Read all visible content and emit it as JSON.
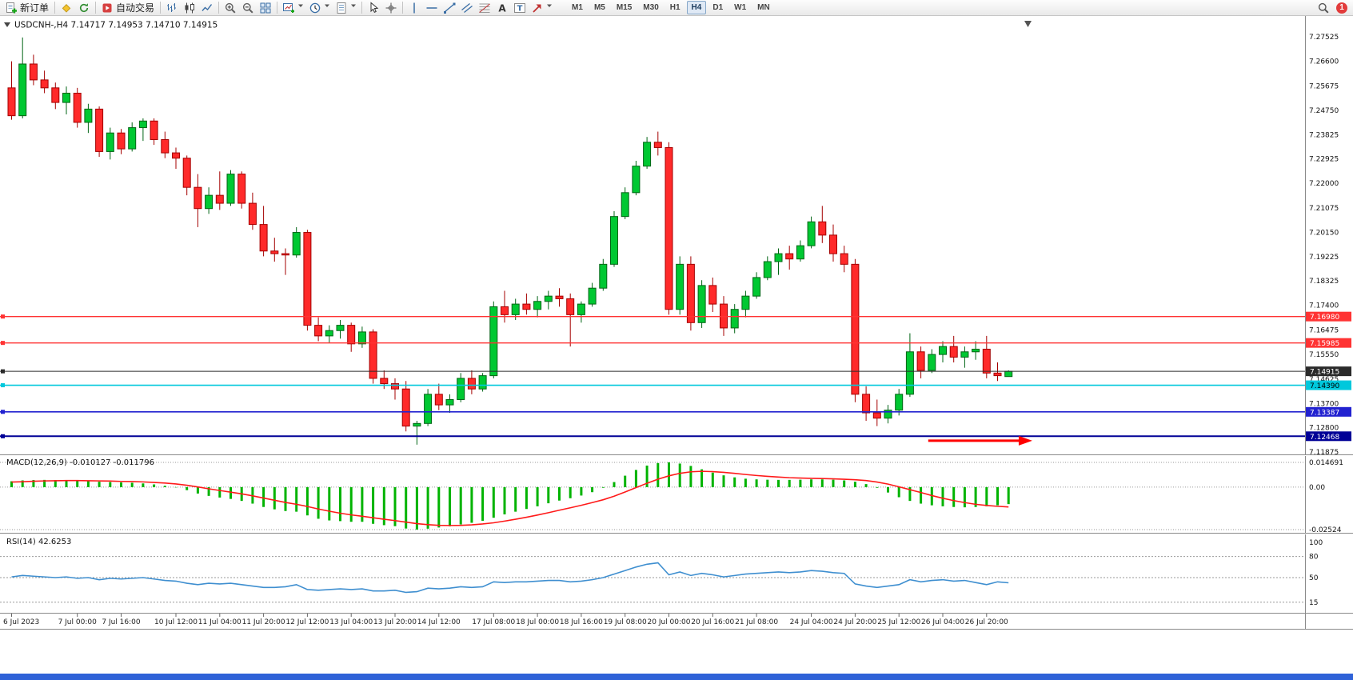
{
  "window": {
    "title": "USDCNH-,H4 7.14717 7.14953 7.14710 7.14915",
    "symbol_period": "USDCNH-,H4",
    "ohlc_text": "7.14717 7.14953 7.14710 7.14915"
  },
  "toolbar": {
    "groups": [
      {
        "items": [
          {
            "name": "new-order-button",
            "icon": "new-order",
            "label": "新订单"
          }
        ]
      },
      {
        "items": [
          {
            "name": "metaquotes-button",
            "icon": "mql"
          },
          {
            "name": "refresh-button",
            "icon": "refresh"
          }
        ]
      },
      {
        "items": [
          {
            "name": "autotrading-button",
            "icon": "autotrade",
            "label": "自动交易"
          }
        ]
      },
      {
        "items": [
          {
            "name": "bar-chart-button",
            "icon": "bars"
          },
          {
            "name": "candlestick-chart-button",
            "icon": "candles"
          },
          {
            "name": "line-chart-button",
            "icon": "linechart"
          }
        ]
      },
      {
        "items": [
          {
            "name": "zoom-in-button",
            "icon": "zoom-in"
          },
          {
            "name": "zoom-out-button",
            "icon": "zoom-out"
          },
          {
            "name": "tile-windows-button",
            "icon": "tile"
          }
        ]
      },
      {
        "items": [
          {
            "name": "new-chart-button",
            "icon": "new-chart",
            "caret": true
          },
          {
            "name": "profiles-button",
            "icon": "clock",
            "caret": true
          },
          {
            "name": "templates-button",
            "icon": "template",
            "caret": true
          }
        ]
      },
      {
        "items": [
          {
            "name": "cursor-button",
            "icon": "cursor"
          },
          {
            "name": "crosshair-button",
            "icon": "crosshair"
          }
        ]
      },
      {
        "items": [
          {
            "name": "vertical-line-button",
            "icon": "vline"
          },
          {
            "name": "horizontal-line-button",
            "icon": "hline"
          },
          {
            "name": "trendline-button",
            "icon": "trendline"
          },
          {
            "name": "channel-button",
            "icon": "channel"
          },
          {
            "name": "fibonacci-button",
            "icon": "fibo"
          },
          {
            "name": "text-button",
            "icon": "text-a"
          },
          {
            "name": "text-label-button",
            "icon": "text-t"
          },
          {
            "name": "arrows-button",
            "icon": "arrow",
            "caret": true
          }
        ]
      }
    ],
    "timeframes": [
      "M1",
      "M5",
      "M15",
      "M30",
      "H1",
      "H4",
      "D1",
      "W1",
      "MN"
    ],
    "active_timeframe": "H4",
    "notification_count": "1"
  },
  "chart_data": {
    "type": "candlestick",
    "symbol": "USDCNH-",
    "timeframe": "H4",
    "title": "USDCNH-,H4 7.14717 7.14953 7.14710 7.14915",
    "last_ohlc": {
      "open": 7.14717,
      "high": 7.14953,
      "low": 7.1471,
      "close": 7.14915
    },
    "colors": {
      "bull": "#00c832",
      "bull_border": "#006414",
      "bear": "#ff2a2a",
      "bear_border": "#a40000",
      "background": "#ffffff"
    },
    "y_axis_labels": [
      "7.27525",
      "7.26600",
      "7.25675",
      "7.24750",
      "7.23825",
      "7.22925",
      "7.22000",
      "7.21075",
      "7.20150",
      "7.19225",
      "7.18325",
      "7.17400",
      "7.16475",
      "7.15550",
      "7.14625",
      "7.13700",
      "7.12800",
      "7.11875"
    ],
    "x_axis_labels": [
      {
        "i": 0,
        "t": "6 Jul 2023"
      },
      {
        "i": 6,
        "t": "7 Jul 00:00"
      },
      {
        "i": 10,
        "t": "7 Jul 16:00"
      },
      {
        "i": 15,
        "t": "10 Jul 12:00"
      },
      {
        "i": 19,
        "t": "11 Jul 04:00"
      },
      {
        "i": 23,
        "t": "11 Jul 20:00"
      },
      {
        "i": 27,
        "t": "12 Jul 12:00"
      },
      {
        "i": 31,
        "t": "13 Jul 04:00"
      },
      {
        "i": 35,
        "t": "13 Jul 20:00"
      },
      {
        "i": 39,
        "t": "14 Jul 12:00"
      },
      {
        "i": 44,
        "t": "17 Jul 08:00"
      },
      {
        "i": 48,
        "t": "18 Jul 00:00"
      },
      {
        "i": 52,
        "t": "18 Jul 16:00"
      },
      {
        "i": 56,
        "t": "19 Jul 08:00"
      },
      {
        "i": 60,
        "t": "20 Jul 00:00"
      },
      {
        "i": 64,
        "t": "20 Jul 16:00"
      },
      {
        "i": 68,
        "t": "21 Jul 08:00"
      },
      {
        "i": 73,
        "t": "24 Jul 04:00"
      },
      {
        "i": 77,
        "t": "24 Jul 20:00"
      },
      {
        "i": 81,
        "t": "25 Jul 12:00"
      },
      {
        "i": 85,
        "t": "26 Jul 04:00"
      },
      {
        "i": 89,
        "t": "26 Jul 20:00"
      }
    ],
    "candles": [
      [
        7.256,
        7.266,
        7.244,
        7.2455
      ],
      [
        7.2455,
        7.275,
        7.2445,
        7.265
      ],
      [
        7.265,
        7.2685,
        7.257,
        7.259
      ],
      [
        7.259,
        7.2625,
        7.254,
        7.256
      ],
      [
        7.256,
        7.258,
        7.248,
        7.2505
      ],
      [
        7.2505,
        7.2565,
        7.246,
        7.254
      ],
      [
        7.254,
        7.256,
        7.241,
        7.243
      ],
      [
        7.243,
        7.25,
        7.239,
        7.248
      ],
      [
        7.248,
        7.249,
        7.23,
        7.232
      ],
      [
        7.232,
        7.241,
        7.229,
        7.239
      ],
      [
        7.239,
        7.2405,
        7.231,
        7.233
      ],
      [
        7.233,
        7.243,
        7.232,
        7.241
      ],
      [
        7.241,
        7.2445,
        7.236,
        7.2435
      ],
      [
        7.2435,
        7.2445,
        7.2345,
        7.2365
      ],
      [
        7.2365,
        7.2395,
        7.2295,
        7.2315
      ],
      [
        7.2315,
        7.2335,
        7.2255,
        7.2295
      ],
      [
        7.2295,
        7.2305,
        7.2155,
        7.2185
      ],
      [
        7.2185,
        7.2235,
        7.2035,
        7.2105
      ],
      [
        7.2105,
        7.2185,
        7.2085,
        7.2155
      ],
      [
        7.2155,
        7.2245,
        7.21,
        7.2125
      ],
      [
        7.2125,
        7.225,
        7.2115,
        7.2235
      ],
      [
        7.2235,
        7.2245,
        7.2105,
        7.2125
      ],
      [
        7.2125,
        7.2165,
        7.2025,
        7.2045
      ],
      [
        7.2045,
        7.2115,
        7.1925,
        7.1945
      ],
      [
        7.1945,
        7.1995,
        7.1905,
        7.1935
      ],
      [
        7.1935,
        7.1955,
        7.1855,
        7.193
      ],
      [
        7.193,
        7.2035,
        7.192,
        7.2015
      ],
      [
        7.2015,
        7.2025,
        7.1645,
        7.1665
      ],
      [
        7.1665,
        7.1695,
        7.1605,
        7.1625
      ],
      [
        7.1625,
        7.1665,
        7.16,
        7.1645
      ],
      [
        7.1645,
        7.1685,
        7.1615,
        7.1665
      ],
      [
        7.1665,
        7.1675,
        7.1565,
        7.1595
      ],
      [
        7.1595,
        7.166,
        7.158,
        7.164
      ],
      [
        7.164,
        7.165,
        7.1445,
        7.1465
      ],
      [
        7.1465,
        7.1495,
        7.1425,
        7.1445
      ],
      [
        7.1445,
        7.1465,
        7.1385,
        7.1425
      ],
      [
        7.1425,
        7.1455,
        7.1265,
        7.1285
      ],
      [
        7.1285,
        7.1305,
        7.1215,
        7.1295
      ],
      [
        7.1295,
        7.1425,
        7.1285,
        7.1405
      ],
      [
        7.1405,
        7.1445,
        7.1345,
        7.1365
      ],
      [
        7.1365,
        7.1405,
        7.1335,
        7.1385
      ],
      [
        7.1385,
        7.1485,
        7.1375,
        7.1465
      ],
      [
        7.1465,
        7.1495,
        7.1405,
        7.1425
      ],
      [
        7.1425,
        7.1485,
        7.1415,
        7.1475
      ],
      [
        7.1475,
        7.1755,
        7.1465,
        7.1735
      ],
      [
        7.1735,
        7.1795,
        7.1675,
        7.1705
      ],
      [
        7.1705,
        7.1765,
        7.1685,
        7.1745
      ],
      [
        7.1745,
        7.1785,
        7.1705,
        7.1725
      ],
      [
        7.1725,
        7.1775,
        7.1695,
        7.1755
      ],
      [
        7.1755,
        7.1795,
        7.1725,
        7.1775
      ],
      [
        7.1775,
        7.1805,
        7.1735,
        7.1765
      ],
      [
        7.1765,
        7.1785,
        7.1585,
        7.1705
      ],
      [
        7.1705,
        7.1755,
        7.1675,
        7.1745
      ],
      [
        7.1745,
        7.1825,
        7.1735,
        7.1805
      ],
      [
        7.1805,
        7.1915,
        7.1795,
        7.1895
      ],
      [
        7.1895,
        7.2095,
        7.1885,
        7.2075
      ],
      [
        7.2075,
        7.2185,
        7.2065,
        7.2165
      ],
      [
        7.2165,
        7.2285,
        7.2155,
        7.2265
      ],
      [
        7.2265,
        7.2375,
        7.2255,
        7.2355
      ],
      [
        7.2355,
        7.2395,
        7.2305,
        7.2335
      ],
      [
        7.2335,
        7.2355,
        7.1705,
        7.1725
      ],
      [
        7.1725,
        7.1925,
        7.1705,
        7.1895
      ],
      [
        7.1895,
        7.1925,
        7.1645,
        7.1675
      ],
      [
        7.1675,
        7.1835,
        7.1655,
        7.1815
      ],
      [
        7.1815,
        7.1845,
        7.1715,
        7.1745
      ],
      [
        7.1745,
        7.1775,
        7.1625,
        7.1655
      ],
      [
        7.1655,
        7.1745,
        7.1635,
        7.1725
      ],
      [
        7.1725,
        7.1795,
        7.1695,
        7.1775
      ],
      [
        7.1775,
        7.1865,
        7.1765,
        7.1845
      ],
      [
        7.1845,
        7.1925,
        7.1835,
        7.1905
      ],
      [
        7.1905,
        7.1955,
        7.1855,
        7.1935
      ],
      [
        7.1935,
        7.1965,
        7.1875,
        7.1915
      ],
      [
        7.1915,
        7.1985,
        7.1905,
        7.1965
      ],
      [
        7.1965,
        7.2075,
        7.1955,
        7.2055
      ],
      [
        7.2055,
        7.2115,
        7.1975,
        7.2005
      ],
      [
        7.2005,
        7.2045,
        7.1905,
        7.1935
      ],
      [
        7.1935,
        7.1965,
        7.1865,
        7.1895
      ],
      [
        7.1895,
        7.1915,
        7.1375,
        7.1405
      ],
      [
        7.1405,
        7.1435,
        7.1305,
        7.1335
      ],
      [
        7.1335,
        7.1385,
        7.1285,
        7.1315
      ],
      [
        7.1315,
        7.1365,
        7.1295,
        7.1345
      ],
      [
        7.1345,
        7.1425,
        7.1325,
        7.1405
      ],
      [
        7.1405,
        7.1635,
        7.1395,
        7.1565
      ],
      [
        7.1565,
        7.1585,
        7.1465,
        7.1495
      ],
      [
        7.1495,
        7.1575,
        7.1485,
        7.1555
      ],
      [
        7.1555,
        7.1605,
        7.1525,
        7.1585
      ],
      [
        7.1585,
        7.1625,
        7.1525,
        7.1545
      ],
      [
        7.1545,
        7.1585,
        7.1505,
        7.1565
      ],
      [
        7.1565,
        7.1605,
        7.1535,
        7.1575
      ],
      [
        7.1575,
        7.1625,
        7.1465,
        7.1485
      ],
      [
        7.1485,
        7.1525,
        7.1455,
        7.1475
      ],
      [
        7.14717,
        7.14953,
        7.1471,
        7.14915
      ]
    ],
    "horizontal_lines": [
      {
        "name": "resistance-line-1",
        "price": "7.16980",
        "color": "#ff3333",
        "width": 1.3,
        "tag_text": "#ffffff"
      },
      {
        "name": "resistance-line-2",
        "price": "7.15985",
        "color": "#ff3333",
        "width": 1.3,
        "tag_text": "#ffffff"
      },
      {
        "name": "current-price-line",
        "price": "7.14915",
        "color": "#2a2a2a",
        "width": 1,
        "tag_text": "#ffffff"
      },
      {
        "name": "support-line-1",
        "price": "7.14390",
        "color": "#00c8dc",
        "width": 1.6,
        "tag_text": "#000000"
      },
      {
        "name": "support-line-2",
        "price": "7.13387",
        "color": "#2222d0",
        "width": 1.6,
        "tag_text": "#ffffff"
      },
      {
        "name": "support-line-3",
        "price": "7.12468",
        "color": "#000096",
        "width": 2,
        "tag_text": "#ffffff"
      }
    ],
    "annotations": [
      {
        "type": "arrow-right",
        "from_i": 84,
        "to_i": 93.5,
        "price": 7.123,
        "color": "#ff0000"
      }
    ],
    "indicators": [
      {
        "name": "MACD",
        "label": "MACD(12,26,9) -0.010127 -0.011796",
        "main_value": "-0.010127",
        "signal_value": "-0.011796",
        "axis": [
          {
            "t": "0.014691",
            "v": 0.014691
          },
          {
            "t": "0.00",
            "v": 0
          },
          {
            "t": "-0.02524",
            "v": -0.025241
          }
        ],
        "colors": {
          "histogram": "#00b300",
          "signal": "#ff1a1a"
        },
        "histogram": [
          0.0035,
          0.004,
          0.0042,
          0.0043,
          0.0042,
          0.004,
          0.0038,
          0.0036,
          0.0032,
          0.003,
          0.0028,
          0.0026,
          0.0022,
          0.0016,
          0.0008,
          -0.0002,
          -0.0018,
          -0.0038,
          -0.0052,
          -0.0062,
          -0.007,
          -0.0082,
          -0.0098,
          -0.0118,
          -0.0132,
          -0.0142,
          -0.0146,
          -0.0168,
          -0.0188,
          -0.0198,
          -0.0202,
          -0.0206,
          -0.0206,
          -0.0218,
          -0.0226,
          -0.0232,
          -0.0246,
          -0.0252,
          -0.0247,
          -0.024,
          -0.0233,
          -0.0222,
          -0.0212,
          -0.02,
          -0.0182,
          -0.0162,
          -0.0146,
          -0.013,
          -0.0114,
          -0.0096,
          -0.008,
          -0.0066,
          -0.005,
          -0.003,
          -0.0004,
          0.003,
          0.0068,
          0.0102,
          0.0128,
          0.0143,
          0.0147,
          0.014,
          0.0126,
          0.0106,
          0.0086,
          0.007,
          0.0058,
          0.005,
          0.0046,
          0.0044,
          0.0043,
          0.0043,
          0.0044,
          0.0046,
          0.0046,
          0.0044,
          0.004,
          0.0032,
          0.0018,
          -0.0004,
          -0.0032,
          -0.006,
          -0.0082,
          -0.0098,
          -0.0108,
          -0.0114,
          -0.0118,
          -0.012,
          -0.0118,
          -0.0114,
          -0.0108,
          -0.0101
        ],
        "signal": [
          0.003,
          0.0032,
          0.0035,
          0.0037,
          0.0038,
          0.0039,
          0.0039,
          0.0038,
          0.0037,
          0.0036,
          0.0034,
          0.0033,
          0.0031,
          0.0028,
          0.0024,
          0.0019,
          0.0011,
          0.0001,
          -0.001,
          -0.002,
          -0.003,
          -0.004,
          -0.0052,
          -0.0065,
          -0.0078,
          -0.0091,
          -0.0102,
          -0.0115,
          -0.013,
          -0.0143,
          -0.0155,
          -0.0165,
          -0.0173,
          -0.0182,
          -0.0191,
          -0.0199,
          -0.0208,
          -0.0217,
          -0.0223,
          -0.0227,
          -0.0228,
          -0.0227,
          -0.0224,
          -0.0219,
          -0.0212,
          -0.0202,
          -0.0191,
          -0.0179,
          -0.0166,
          -0.0152,
          -0.0137,
          -0.0123,
          -0.0108,
          -0.0092,
          -0.0075,
          -0.0054,
          -0.0029,
          -0.0003,
          0.0023,
          0.0047,
          0.0067,
          0.0082,
          0.0091,
          0.0094,
          0.0092,
          0.0088,
          0.0082,
          0.0075,
          0.0069,
          0.0064,
          0.006,
          0.0056,
          0.0054,
          0.0052,
          0.0051,
          0.0049,
          0.0047,
          0.0044,
          0.0039,
          0.003,
          0.0018,
          0.0002,
          -0.0015,
          -0.0032,
          -0.005,
          -0.0066,
          -0.008,
          -0.0092,
          -0.0102,
          -0.0109,
          -0.0114,
          -0.0118
        ]
      },
      {
        "name": "RSI",
        "label": "RSI(14) 42.6253",
        "value": "42.6253",
        "axis": [
          {
            "t": "100",
            "v": 100
          },
          {
            "t": "80",
            "v": 80
          },
          {
            "t": "50",
            "v": 50
          },
          {
            "t": "15",
            "v": 15
          }
        ],
        "levels": [
          80,
          50,
          15
        ],
        "color": "#3f8fd0",
        "values": [
          51,
          53,
          52,
          51,
          50,
          51,
          49,
          50,
          47,
          49,
          48,
          49,
          50,
          48,
          46,
          45,
          42,
          40,
          42,
          41,
          42,
          40,
          38,
          36,
          36,
          37,
          40,
          33,
          32,
          33,
          34,
          33,
          34,
          31,
          31,
          32,
          29,
          30,
          35,
          34,
          35,
          37,
          36,
          37,
          44,
          43,
          44,
          44,
          45,
          46,
          46,
          44,
          45,
          47,
          50,
          55,
          60,
          65,
          69,
          71,
          54,
          58,
          53,
          56,
          54,
          51,
          53,
          55,
          56,
          57,
          58,
          57,
          58,
          60,
          59,
          57,
          56,
          41,
          38,
          36,
          38,
          40,
          47,
          44,
          46,
          47,
          45,
          46,
          43,
          40,
          44,
          42.6
        ]
      }
    ]
  },
  "taskbar": {
    "color": "#2f62d8"
  }
}
